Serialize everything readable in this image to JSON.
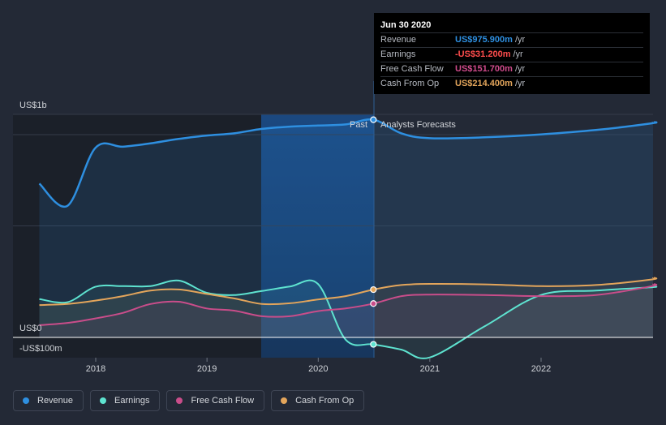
{
  "chart_data": {
    "type": "line",
    "x_ticks": [
      "2018",
      "2019",
      "2020",
      "2021",
      "2022"
    ],
    "y_tick_labels": {
      "top": "US$1b",
      "zero": "US$0",
      "bottom": "-US$100m"
    },
    "ylim": [
      -100,
      1000
    ],
    "section_labels": {
      "past": "Past",
      "forecast": "Analysts Forecasts"
    },
    "highlight_date": "2020-06-30",
    "series": [
      {
        "name": "Revenue",
        "color": "#2e8fe0",
        "points": [
          [
            "2017-06-30",
            690
          ],
          [
            "2017-09-30",
            590
          ],
          [
            "2017-12-31",
            850
          ],
          [
            "2018-03-31",
            855
          ],
          [
            "2018-06-30",
            870
          ],
          [
            "2018-09-30",
            890
          ],
          [
            "2018-12-31",
            905
          ],
          [
            "2019-03-31",
            915
          ],
          [
            "2019-06-30",
            935
          ],
          [
            "2019-09-30",
            945
          ],
          [
            "2019-12-31",
            950
          ],
          [
            "2020-03-31",
            955
          ],
          [
            "2020-06-30",
            975.9
          ],
          [
            "2020-09-30",
            915
          ],
          [
            "2020-12-31",
            893
          ],
          [
            "2021-06-30",
            897
          ],
          [
            "2021-12-31",
            910
          ],
          [
            "2022-06-30",
            930
          ],
          [
            "2022-12-31",
            960
          ],
          [
            "2023-01-31",
            965
          ]
        ]
      },
      {
        "name": "Earnings",
        "color": "#5ee3d0",
        "points": [
          [
            "2017-06-30",
            172
          ],
          [
            "2017-09-30",
            158
          ],
          [
            "2017-12-31",
            227
          ],
          [
            "2018-03-31",
            230
          ],
          [
            "2018-06-30",
            230
          ],
          [
            "2018-09-30",
            255
          ],
          [
            "2018-12-31",
            200
          ],
          [
            "2019-03-31",
            190
          ],
          [
            "2019-06-30",
            208
          ],
          [
            "2019-09-30",
            228
          ],
          [
            "2019-12-31",
            240
          ],
          [
            "2020-03-31",
            -10
          ],
          [
            "2020-06-30",
            -31.2
          ],
          [
            "2020-09-30",
            -55
          ],
          [
            "2020-12-31",
            -90
          ],
          [
            "2021-06-30",
            50
          ],
          [
            "2021-12-31",
            190
          ],
          [
            "2022-06-30",
            210
          ],
          [
            "2022-12-31",
            225
          ],
          [
            "2023-01-31",
            228
          ]
        ]
      },
      {
        "name": "Free Cash Flow",
        "color": "#c94d8a",
        "points": [
          [
            "2017-06-30",
            55
          ],
          [
            "2017-09-30",
            65
          ],
          [
            "2017-12-31",
            85
          ],
          [
            "2018-03-31",
            110
          ],
          [
            "2018-06-30",
            150
          ],
          [
            "2018-09-30",
            160
          ],
          [
            "2018-12-31",
            130
          ],
          [
            "2019-03-31",
            120
          ],
          [
            "2019-06-30",
            95
          ],
          [
            "2019-09-30",
            95
          ],
          [
            "2019-12-31",
            118
          ],
          [
            "2020-03-31",
            130
          ],
          [
            "2020-06-30",
            151.7
          ],
          [
            "2020-09-30",
            185
          ],
          [
            "2020-12-31",
            192
          ],
          [
            "2021-06-30",
            190
          ],
          [
            "2021-12-31",
            185
          ],
          [
            "2022-06-30",
            190
          ],
          [
            "2022-12-31",
            230
          ],
          [
            "2023-01-31",
            240
          ]
        ]
      },
      {
        "name": "Cash From Op",
        "color": "#e3a55b",
        "points": [
          [
            "2017-06-30",
            145
          ],
          [
            "2017-09-30",
            150
          ],
          [
            "2017-12-31",
            165
          ],
          [
            "2018-03-31",
            185
          ],
          [
            "2018-06-30",
            210
          ],
          [
            "2018-09-30",
            215
          ],
          [
            "2018-12-31",
            195
          ],
          [
            "2019-03-31",
            175
          ],
          [
            "2019-06-30",
            150
          ],
          [
            "2019-09-30",
            153
          ],
          [
            "2019-12-31",
            170
          ],
          [
            "2020-03-31",
            185
          ],
          [
            "2020-06-30",
            214.4
          ],
          [
            "2020-09-30",
            235
          ],
          [
            "2020-12-31",
            240
          ],
          [
            "2021-06-30",
            238
          ],
          [
            "2021-12-31",
            230
          ],
          [
            "2022-06-30",
            235
          ],
          [
            "2022-12-31",
            260
          ],
          [
            "2023-01-31",
            268
          ]
        ]
      }
    ]
  },
  "tooltip": {
    "date": "Jun 30 2020",
    "unit": "/yr",
    "rows": [
      {
        "label": "Revenue",
        "value": "US$975.900m",
        "color": "#2e8fe0"
      },
      {
        "label": "Earnings",
        "value": "-US$31.200m",
        "color": "#ff4d4d"
      },
      {
        "label": "Free Cash Flow",
        "value": "US$151.700m",
        "color": "#d04b8c"
      },
      {
        "label": "Cash From Op",
        "value": "US$214.400m",
        "color": "#e3a55b"
      }
    ]
  },
  "legend": [
    {
      "label": "Revenue",
      "color": "#2e8fe0"
    },
    {
      "label": "Earnings",
      "color": "#5ee3d0"
    },
    {
      "label": "Free Cash Flow",
      "color": "#c94d8a"
    },
    {
      "label": "Cash From Op",
      "color": "#e3a55b"
    }
  ]
}
